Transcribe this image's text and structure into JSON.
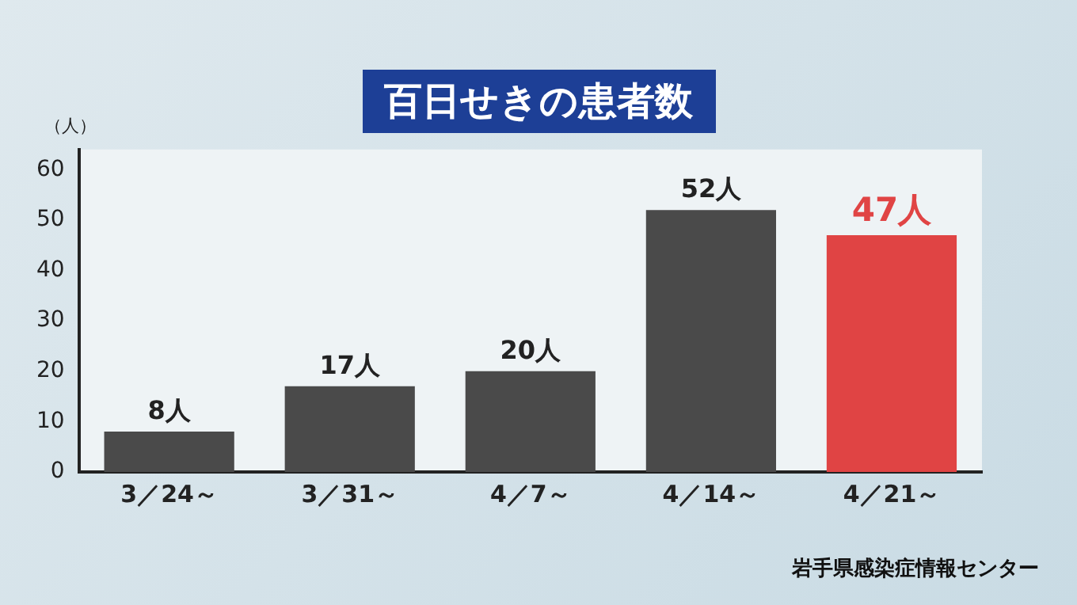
{
  "chart_data": {
    "type": "bar",
    "title": "百日せきの患者数",
    "ylabel": "（人）",
    "categories": [
      "3／24～",
      "3／31～",
      "4／7～",
      "4／14～",
      "4／21～"
    ],
    "values": [
      8,
      17,
      20,
      52,
      47
    ],
    "colors": [
      "#4a4a4a",
      "#4a4a4a",
      "#4a4a4a",
      "#4a4a4a",
      "#e04444"
    ],
    "value_labels": [
      "8人",
      "17人",
      "20人",
      "52人",
      "47人"
    ],
    "ylim": [
      0,
      64
    ],
    "yticks": [
      0,
      10,
      20,
      30,
      40,
      50,
      60
    ],
    "grid": false,
    "legend": false,
    "annotations": [
      "岩手県感染症情報センター"
    ]
  }
}
